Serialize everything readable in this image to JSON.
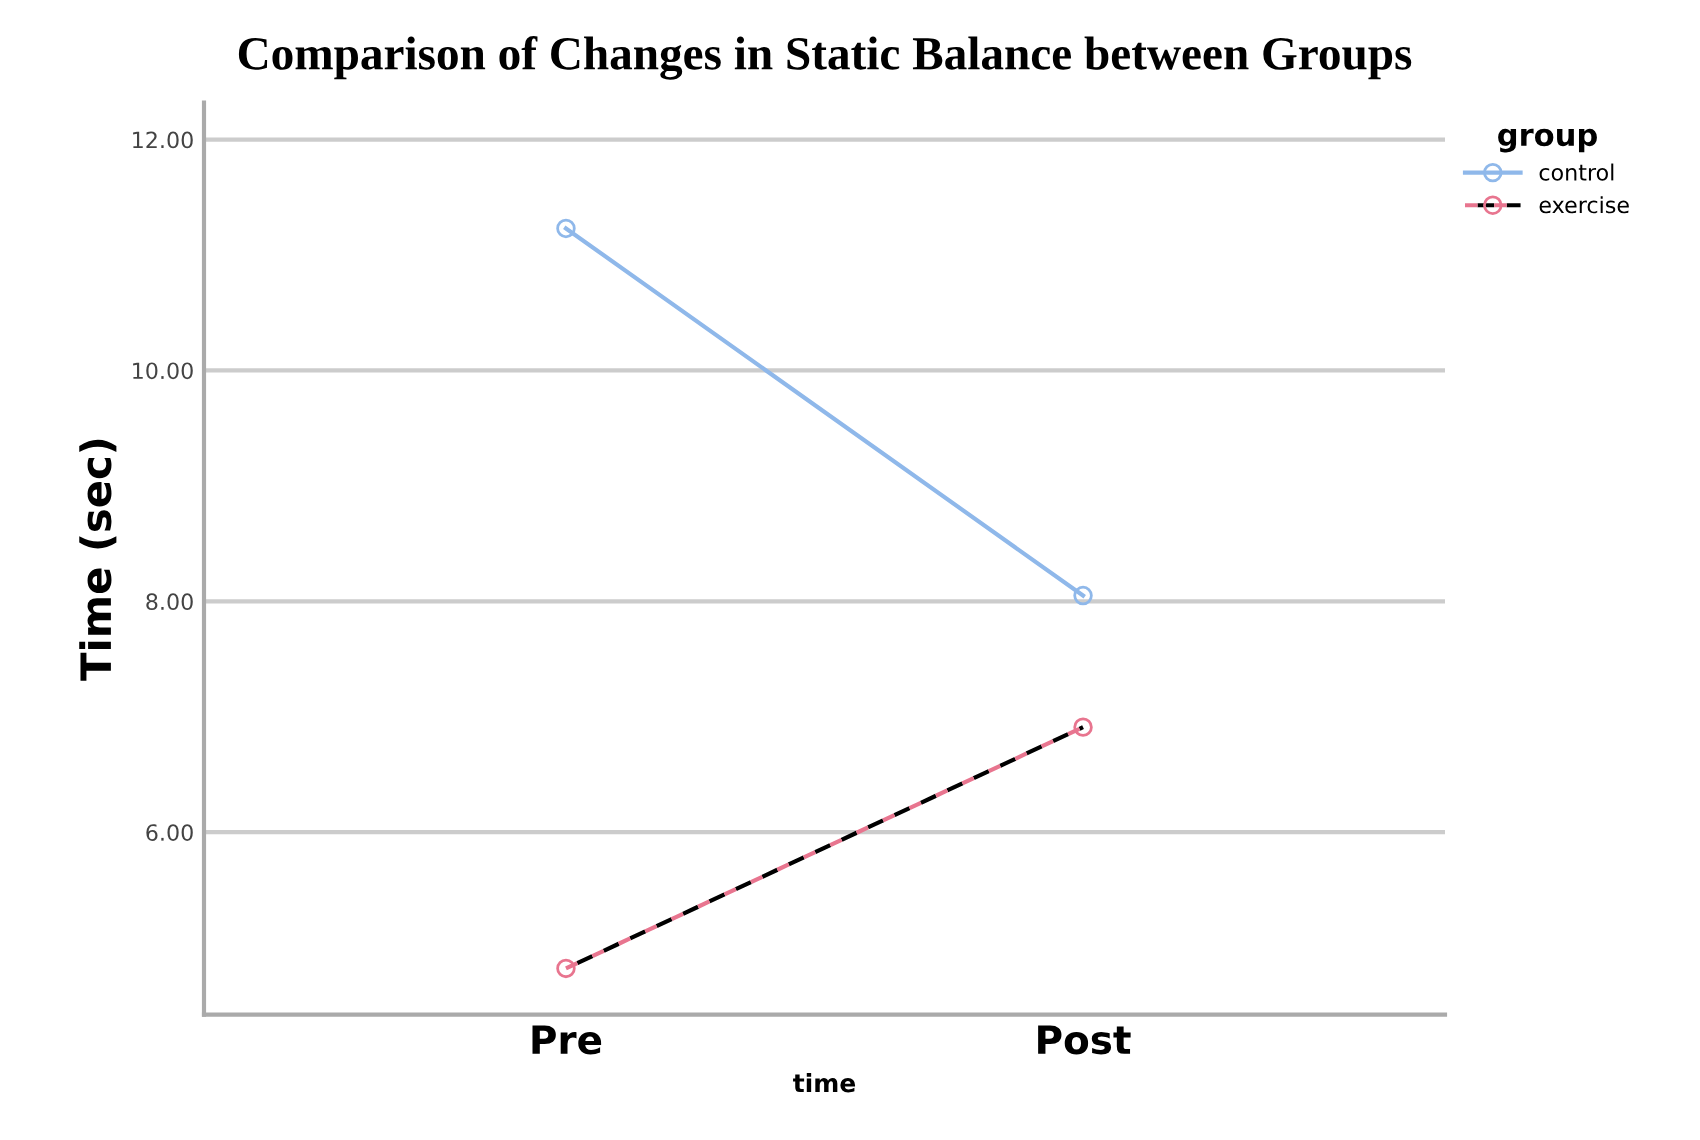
{
  "chart_data": {
    "type": "line",
    "title": "Comparison of Changes in Static Balance between Groups",
    "xlabel": "time",
    "ylabel": "Time (sec)",
    "legend_title": "group",
    "categories": [
      "Pre",
      "Post"
    ],
    "series": [
      {
        "name": "control",
        "color": "#8fb8ea",
        "values": [
          11.23,
          8.05
        ],
        "line_style": "solid"
      },
      {
        "name": "exercise",
        "color": "#e8758f",
        "values": [
          4.82,
          6.91
        ],
        "line_style": "dashed"
      }
    ],
    "ylim": [
      4.42,
      12.32
    ],
    "yticks": [
      {
        "value": 6,
        "label": "6.00"
      },
      {
        "value": 8,
        "label": "8.00"
      },
      {
        "value": 10,
        "label": "10.00"
      },
      {
        "value": 12,
        "label": "12.00"
      }
    ],
    "grid": "y",
    "legend": "top right",
    "marker": "circle"
  }
}
